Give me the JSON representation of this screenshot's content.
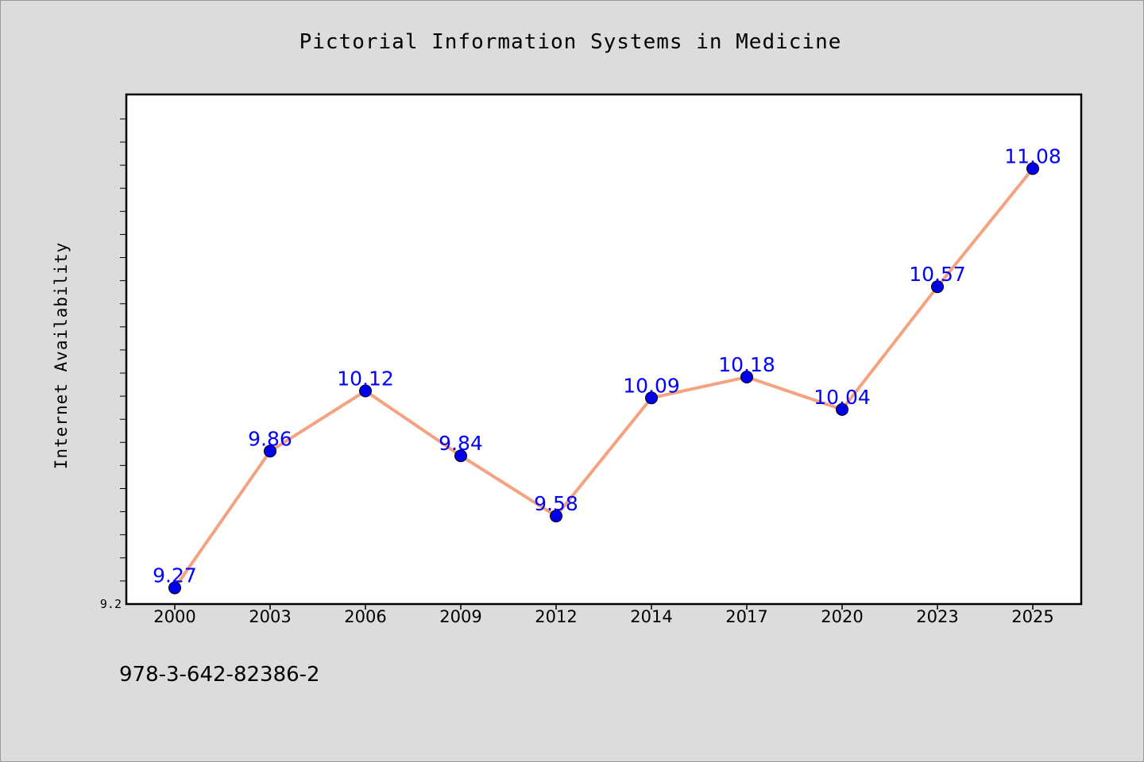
{
  "chart_data": {
    "type": "line",
    "title": "Pictorial Information Systems in Medicine",
    "xlabel": "",
    "ylabel": "Internet Availability",
    "categories": [
      "2000",
      "2003",
      "2006",
      "2009",
      "2012",
      "2014",
      "2017",
      "2020",
      "2023",
      "2025"
    ],
    "series": [
      {
        "values": [
          9.27,
          9.86,
          10.12,
          9.84,
          9.58,
          10.09,
          10.18,
          10.04,
          10.57,
          11.08
        ]
      }
    ],
    "data_labels": [
      "9.27",
      "9.86",
      "10.12",
      "9.84",
      "9.58",
      "10.09",
      "10.18",
      "10.04",
      "10.57",
      "11.08"
    ],
    "ytick_labels": [
      "9.2"
    ],
    "ylim": [
      9.2,
      11.4
    ],
    "grid": false,
    "legend": "none",
    "colors": {
      "line": "#f4a27f",
      "marker": "#0000ee",
      "data_label": "#0000ff",
      "plot_background": "#ffffff",
      "page_background": "#dcdcdc"
    }
  },
  "footer": {
    "isbn": "978-3-642-82386-2"
  }
}
